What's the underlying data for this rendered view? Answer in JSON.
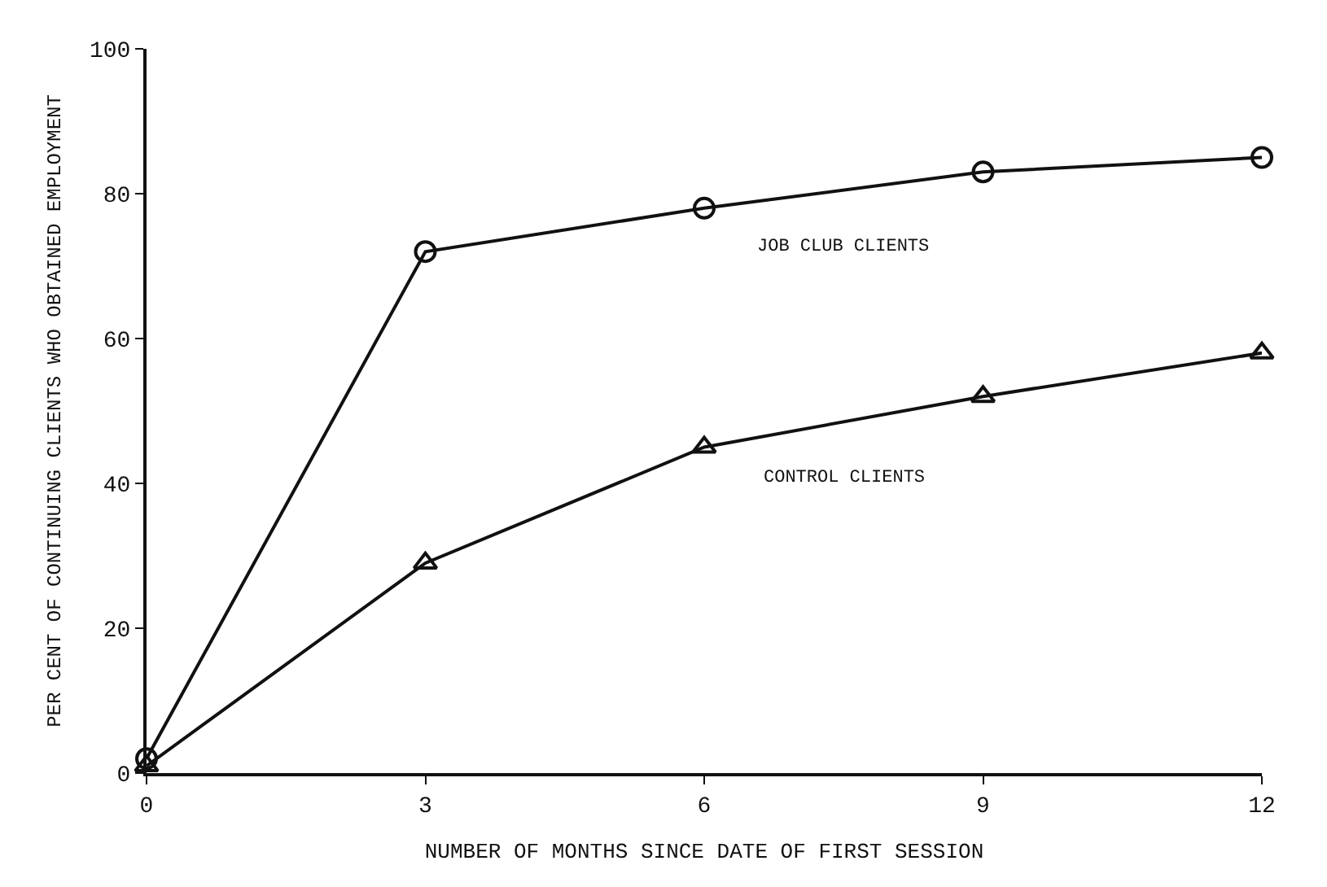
{
  "chart_data": {
    "type": "line",
    "xlabel": "NUMBER OF MONTHS SINCE DATE OF FIRST SESSION",
    "ylabel": "PER CENT OF CONTINUING CLIENTS WHO OBTAINED EMPLOYMENT",
    "x": [
      0,
      3,
      6,
      9,
      12
    ],
    "series": [
      {
        "name": "JOB CLUB CLIENTS",
        "color": "#111111",
        "values": [
          2,
          72,
          78,
          83,
          85
        ],
        "marker": "circle"
      },
      {
        "name": "CONTROL CLIENTS",
        "color": "#111111",
        "values": [
          1,
          29,
          45,
          52,
          58
        ],
        "marker": "triangle"
      }
    ],
    "xlim": [
      0,
      12
    ],
    "ylim": [
      0,
      100
    ],
    "xticks": [
      0,
      3,
      6,
      9,
      12
    ],
    "yticks": [
      0,
      20,
      40,
      60,
      80,
      100
    ],
    "legend": false,
    "line_style": "solid"
  }
}
